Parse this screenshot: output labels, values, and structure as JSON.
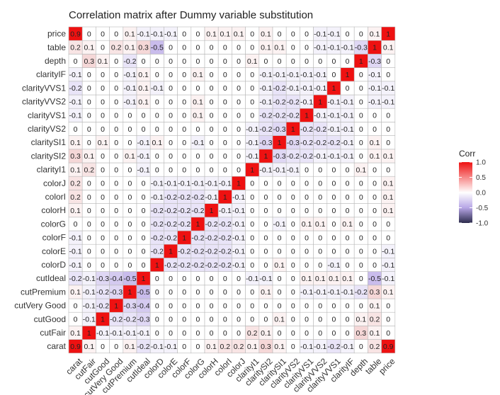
{
  "chart_data": {
    "type": "heatmap",
    "title": "Correlation matrix after Dummy variable substitution",
    "x_labels": [
      "carat",
      "cutFair",
      "cutGood",
      "cutVery Good",
      "cutPremium",
      "cutIdeal",
      "colorD",
      "colorE",
      "colorF",
      "colorG",
      "colorH",
      "colorI",
      "colorJ",
      "clarityI1",
      "claritySI2",
      "claritySI1",
      "clarityVS2",
      "clarityVS1",
      "clarityVVS2",
      "clarityVVS1",
      "clarityIF",
      "depth",
      "table",
      "price"
    ],
    "y_labels": [
      "carat",
      "cutFair",
      "cutGood",
      "cutVery Good",
      "cutPremium",
      "cutIdeal",
      "colorD",
      "colorE",
      "colorF",
      "colorG",
      "colorH",
      "colorI",
      "colorJ",
      "clarityI1",
      "claritySI2",
      "claritySI1",
      "clarityVS2",
      "clarityVS1",
      "clarityVVS2",
      "clarityVVS1",
      "clarityIF",
      "depth",
      "table",
      "price"
    ],
    "values": [
      [
        0.9,
        0.1,
        0,
        0,
        0.1,
        -0.2,
        -0.1,
        -0.1,
        0,
        0,
        0.1,
        0.2,
        0.2,
        0.1,
        0.3,
        0.1,
        0,
        -0.1,
        -0.1,
        -0.2,
        -0.1,
        0,
        0.2,
        0.9
      ],
      [
        0.1,
        1,
        -0.1,
        -0.1,
        -0.1,
        -0.1,
        0,
        0,
        0,
        0,
        0,
        0,
        0,
        0.2,
        0.1,
        0,
        0,
        0,
        0,
        0,
        0,
        0.3,
        0.1,
        0
      ],
      [
        0,
        -0.1,
        1,
        -0.2,
        -0.2,
        -0.3,
        0,
        0,
        0,
        0,
        0,
        0,
        0,
        0,
        0,
        0.1,
        0,
        0,
        0,
        0,
        0,
        0.1,
        0.2,
        0
      ],
      [
        0,
        -0.1,
        -0.2,
        1,
        -0.3,
        -0.4,
        0,
        0,
        0,
        0,
        0,
        0,
        0,
        0,
        0,
        0,
        0,
        0,
        0,
        0,
        0,
        0,
        0.1,
        0
      ],
      [
        0.1,
        -0.1,
        -0.2,
        -0.3,
        1,
        -0.5,
        0,
        0,
        0,
        0,
        0,
        0,
        0,
        0,
        0.1,
        0,
        0,
        -0.1,
        -0.1,
        -0.1,
        -0.1,
        -0.2,
        0.3,
        0.1
      ],
      [
        -0.2,
        -0.1,
        -0.3,
        -0.4,
        -0.5,
        1,
        0,
        0,
        0,
        0,
        0,
        0,
        0,
        -0.1,
        -0.1,
        0,
        0,
        0.1,
        0.1,
        0.1,
        0.1,
        0,
        -0.5,
        -0.1
      ],
      [
        -0.1,
        0,
        0,
        0,
        0,
        0,
        1,
        -0.2,
        -0.2,
        -0.2,
        -0.2,
        -0.2,
        -0.1,
        0,
        0,
        0.1,
        0,
        0,
        0,
        -0.1,
        0,
        0,
        0,
        -0.1
      ],
      [
        -0.1,
        0,
        0,
        0,
        0,
        0,
        -0.2,
        1,
        -0.2,
        -0.2,
        -0.2,
        -0.2,
        -0.1,
        0,
        0,
        0,
        0,
        0,
        0,
        0,
        0,
        0,
        0,
        -0.1
      ],
      [
        -0.1,
        0,
        0,
        0,
        0,
        0,
        -0.2,
        -0.2,
        1,
        -0.2,
        -0.2,
        -0.2,
        -0.1,
        0,
        0,
        0,
        0,
        0,
        0,
        0,
        0,
        0,
        0,
        0
      ],
      [
        0,
        0,
        0,
        0,
        0,
        0,
        -0.2,
        -0.2,
        -0.2,
        1,
        -0.2,
        -0.2,
        -0.1,
        0,
        0,
        -0.1,
        0,
        0.1,
        0.1,
        0,
        0.1,
        0,
        0,
        0
      ],
      [
        0.1,
        0,
        0,
        0,
        0,
        0,
        -0.2,
        -0.2,
        -0.2,
        -0.2,
        1,
        -0.1,
        -0.1,
        0,
        0,
        0,
        0,
        0,
        0,
        0,
        0,
        0,
        0,
        0.1
      ],
      [
        0.2,
        0,
        0,
        0,
        0,
        0,
        -0.1,
        -0.2,
        -0.2,
        -0.2,
        -0.1,
        1,
        -0.1,
        0,
        0,
        0,
        0,
        0,
        0,
        0,
        0,
        0,
        0,
        0.1
      ],
      [
        0.2,
        0,
        0,
        0,
        0,
        0,
        -0.1,
        -0.1,
        -0.1,
        -0.1,
        -0.1,
        -0.1,
        1,
        0,
        0,
        0,
        0,
        0,
        0,
        0,
        0,
        0,
        0,
        0.1
      ],
      [
        0.1,
        0.2,
        0,
        0,
        0,
        -0.1,
        0,
        0,
        0,
        0,
        0,
        0,
        0,
        1,
        -0.1,
        -0.1,
        -0.1,
        0,
        0,
        0,
        0,
        0.1,
        0,
        0
      ],
      [
        0.3,
        0.1,
        0,
        0,
        0.1,
        -0.1,
        0,
        0,
        0,
        0,
        0,
        0,
        0,
        -0.1,
        1,
        -0.3,
        -0.2,
        -0.2,
        -0.1,
        -0.1,
        -0.1,
        0,
        0.1,
        0.1
      ],
      [
        0.1,
        0,
        0.1,
        0,
        0,
        -0.1,
        0.1,
        0,
        0,
        -0.1,
        0,
        0,
        0,
        -0.1,
        -0.3,
        1,
        -0.3,
        -0.2,
        -0.2,
        -0.2,
        -0.1,
        0,
        0.1,
        0
      ],
      [
        0,
        0,
        0,
        0,
        0,
        0,
        0,
        0,
        0,
        0,
        0,
        0,
        0,
        -0.1,
        -0.2,
        -0.3,
        1,
        -0.2,
        -0.2,
        -0.1,
        -0.1,
        0,
        0,
        0
      ],
      [
        -0.1,
        0,
        0,
        0,
        0,
        0,
        0,
        0,
        0,
        0.1,
        0,
        0,
        0,
        0,
        -0.2,
        -0.2,
        -0.2,
        1,
        -0.1,
        -0.1,
        -0.1,
        0,
        0,
        0
      ],
      [
        -0.1,
        0,
        0,
        0,
        -0.1,
        0.1,
        0,
        0,
        0,
        0.1,
        0,
        0,
        0,
        0,
        -0.1,
        -0.2,
        -0.2,
        -0.1,
        1,
        -0.1,
        -0.1,
        0,
        -0.1,
        -0.1
      ],
      [
        -0.2,
        0,
        0,
        0,
        -0.1,
        0.1,
        -0.1,
        0,
        0,
        0,
        0,
        0,
        0,
        0,
        -0.1,
        -0.2,
        -0.1,
        -0.1,
        -0.1,
        1,
        0,
        0,
        -0.1,
        -0.1
      ],
      [
        -0.1,
        0,
        0,
        0,
        -0.1,
        0.1,
        0,
        0,
        0,
        0.1,
        0,
        0,
        0,
        0,
        -0.1,
        -0.1,
        -0.1,
        -0.1,
        -0.1,
        0,
        1,
        0,
        -0.1,
        0
      ],
      [
        0,
        0.3,
        0.1,
        0,
        -0.2,
        0,
        0,
        0,
        0,
        0,
        0,
        0,
        0,
        0.1,
        0,
        0,
        0,
        0,
        0,
        0,
        0,
        1,
        -0.3,
        0
      ],
      [
        0.2,
        0.1,
        0,
        0.2,
        0.1,
        0.3,
        -0.5,
        0,
        0,
        0,
        0,
        0,
        0,
        0,
        0.1,
        0.1,
        0,
        0,
        -0.1,
        -0.1,
        -0.1,
        -0.3,
        1,
        0.1
      ],
      [
        0.9,
        0,
        0,
        0,
        0.1,
        -0.1,
        -0.1,
        -0.1,
        0,
        0,
        0.1,
        0.1,
        0.1,
        0,
        0.1,
        0,
        0,
        0,
        -0.1,
        -0.1,
        0,
        0,
        0.1,
        1
      ]
    ],
    "value_range": [
      -1,
      1
    ],
    "legend": {
      "title": "Corr",
      "ticks": [
        "1.0",
        "0.5",
        "0.0",
        "-0.5",
        "-1.0"
      ],
      "tick_values": [
        1.0,
        0.5,
        0.0,
        -0.5,
        -1.0
      ],
      "position": "right"
    },
    "colors": {
      "high": "#ee1111",
      "mid": "#ffffff",
      "low": "#2c2c4c",
      "midlow": "#b7a6e6",
      "grid": "#b9b9b9",
      "diagonal": "#ee1111"
    }
  }
}
